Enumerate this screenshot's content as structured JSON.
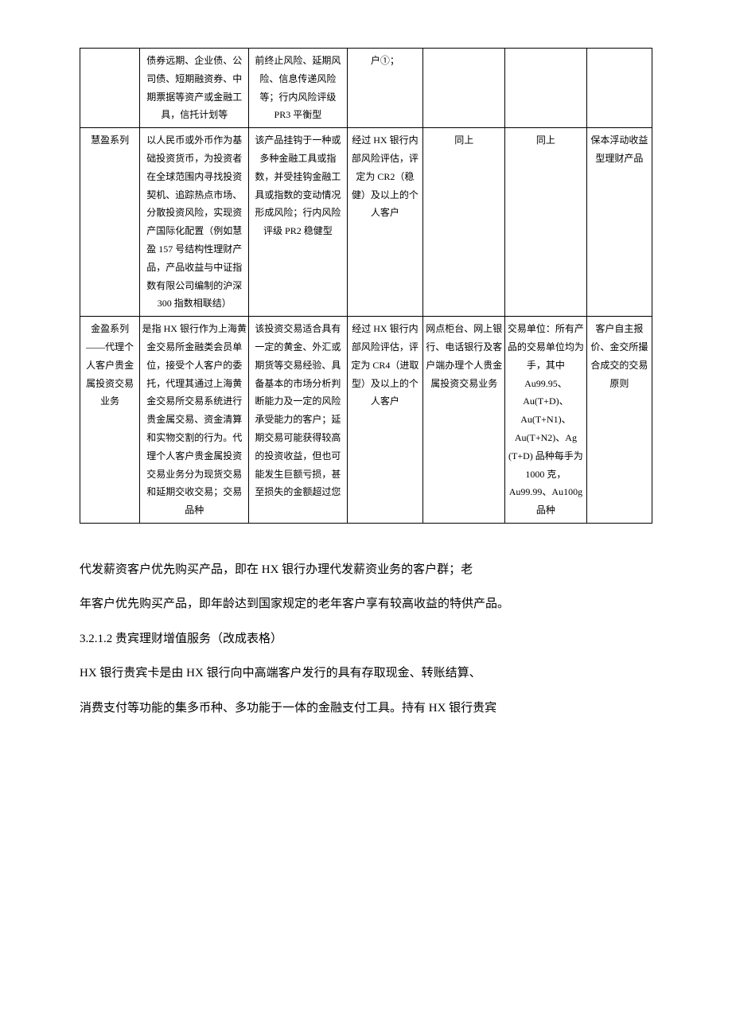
{
  "table": {
    "rows": [
      {
        "c1": "",
        "c2": "债券远期、企业债、公司债、短期融资券、中期票据等资产或金融工具，信托计划等",
        "c3": "前终止风险、延期风险、信息传递风险等；行内风险评级 PR3 平衡型",
        "c4": "户①；",
        "c5": "",
        "c6": "",
        "c7": ""
      },
      {
        "c1": "慧盈系列",
        "c2": "以人民币或外币作为基础投资货币，为投资者在全球范围内寻找投资契机、追踪热点市场、分散投资风险，实现资产国际化配置（例如慧盈 157 号结构性理财产品，产品收益与中证指数有限公司编制的沪深 300 指数相联结）",
        "c3": "该产品挂钩于一种或多种金融工具或指数，并受挂钩金融工具或指数的变动情况形成风险；行内风险评级 PR2 稳健型",
        "c4": "经过 HX 银行内部风险评估，评定为 CR2（稳健）及以上的个人客户",
        "c5": "同上",
        "c6": "同上",
        "c7": "保本浮动收益型理财产品"
      },
      {
        "c1": "金盈系列——代理个人客户贵金属投资交易业务",
        "c2": "是指 HX 银行作为上海黄金交易所金融类会员单位，接受个人客户的委托，代理其通过上海黄金交易所交易系统进行贵金属交易、资金清算和实物交割的行为。代理个人客户贵金属投资交易业务分为现货交易和延期交收交易；交易品种",
        "c3": "该投资交易适合具有一定的黄金、外汇或期货等交易经验、具备基本的市场分析判断能力及一定的风险承受能力的客户；延期交易可能获得较高的投资收益，但也可能发生巨额亏损，甚至损失的金额超过您",
        "c4": "经过 HX 银行内部风险评估，评定为 CR4（进取型）及以上的个人客户",
        "c5": "网点柜台、网上银行、电话银行及客户端办理个人贵金属投资交易业务",
        "c6": "交易单位：所有产品的交易单位均为手，其中Au99.95、Au(T+D)、Au(T+N1)、Au(T+N2)、Ag (T+D) 品种每手为1000 克，Au99.99、Au100g 品种",
        "c7": "客户自主报价、金交所撮合成交的交易原则"
      }
    ]
  },
  "paragraphs": {
    "p1": "代发薪资客户优先购买产品，即在 HX 银行办理代发薪资业务的客户群；老",
    "p2": "年客户优先购买产品，即年龄达到国家规定的老年客户享有较高收益的特供产品。",
    "p3": "3.2.1.2 贵宾理财增值服务（改成表格）",
    "p4": "HX 银行贵宾卡是由 HX 银行向中高端客户发行的具有存取现金、转账结算、",
    "p5": "消费支付等功能的集多币种、多功能于一体的金融支付工具。持有 HX 银行贵宾"
  }
}
